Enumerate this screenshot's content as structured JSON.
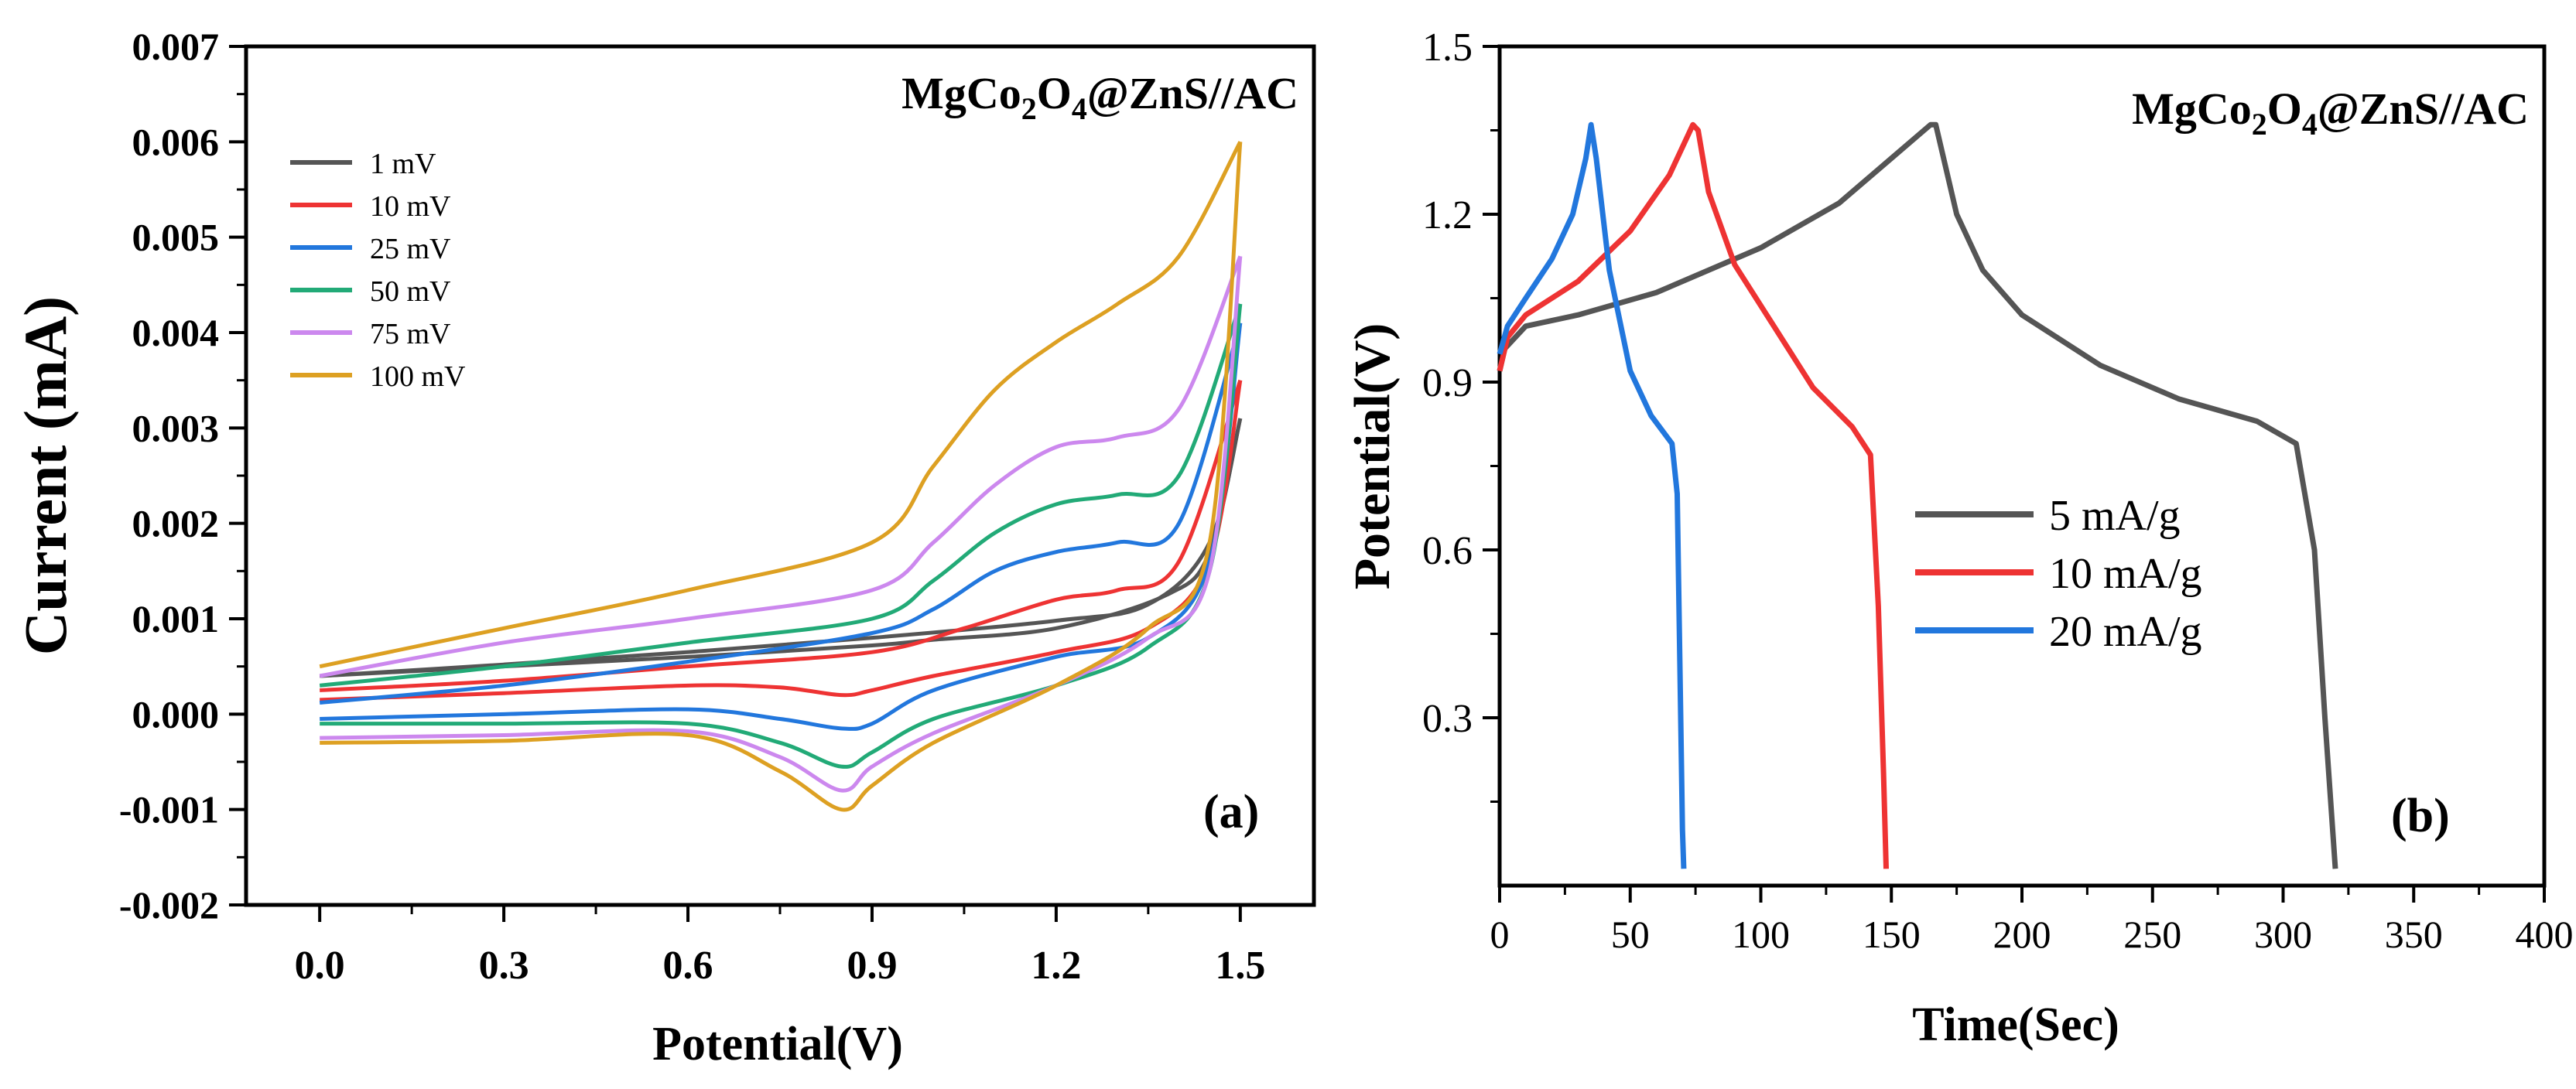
{
  "chart_data": [
    {
      "type": "line",
      "panel_label": "(a)",
      "annotation": {
        "main": "MgCo",
        "sub1": "2",
        "mid": "O",
        "sub2": "4",
        "tail": "@ZnS//AC"
      },
      "xlabel": "Potential(V)",
      "ylabel": "Current (mA)",
      "xlim": [
        -0.12,
        1.62
      ],
      "ylim": [
        -0.002,
        0.007
      ],
      "xticks": [
        0.0,
        0.3,
        0.6,
        0.9,
        1.2,
        1.5
      ],
      "xtick_labels": [
        "0.0",
        "0.3",
        "0.6",
        "0.9",
        "1.2",
        "1.5"
      ],
      "yticks": [
        -0.002,
        -0.001,
        0.0,
        0.001,
        0.002,
        0.003,
        0.004,
        0.005,
        0.006,
        0.007
      ],
      "ytick_labels": [
        "-0.002",
        "-0.001",
        "0.000",
        "0.001",
        "0.002",
        "0.003",
        "0.004",
        "0.005",
        "0.006",
        "0.007"
      ],
      "legend_position": "top-left",
      "series": [
        {
          "name": "1   mV",
          "color": "#555555",
          "forward": [
            [
              0.0,
              0.0004
            ],
            [
              0.3,
              0.00052
            ],
            [
              0.6,
              0.00065
            ],
            [
              0.9,
              0.0008
            ],
            [
              1.2,
              0.00098
            ],
            [
              1.35,
              0.00115
            ],
            [
              1.45,
              0.0018
            ],
            [
              1.5,
              0.0031
            ]
          ],
          "reverse": [
            [
              1.5,
              0.0031
            ],
            [
              1.45,
              0.0017
            ],
            [
              1.38,
              0.00125
            ],
            [
              1.2,
              0.0009
            ],
            [
              1.0,
              0.00078
            ],
            [
              0.9,
              0.00072
            ],
            [
              0.6,
              0.0006
            ],
            [
              0.3,
              0.0005
            ],
            [
              0.0,
              0.0004
            ]
          ]
        },
        {
          "name": "10  mV",
          "color": "#ee3333",
          "forward": [
            [
              0.0,
              0.00025
            ],
            [
              0.3,
              0.00035
            ],
            [
              0.6,
              0.0005
            ],
            [
              0.9,
              0.00065
            ],
            [
              1.05,
              0.0009
            ],
            [
              1.2,
              0.0012
            ],
            [
              1.3,
              0.0013
            ],
            [
              1.4,
              0.0016
            ],
            [
              1.5,
              0.0035
            ]
          ],
          "reverse": [
            [
              1.5,
              0.0035
            ],
            [
              1.45,
              0.0016
            ],
            [
              1.35,
              0.0009
            ],
            [
              1.2,
              0.00065
            ],
            [
              1.0,
              0.0004
            ],
            [
              0.9,
              0.00025
            ],
            [
              0.85,
              0.0002
            ],
            [
              0.75,
              0.00028
            ],
            [
              0.6,
              0.0003
            ],
            [
              0.3,
              0.00022
            ],
            [
              0.0,
              0.00015
            ]
          ]
        },
        {
          "name": "25  mV",
          "color": "#2277dd",
          "forward": [
            [
              0.0,
              0.00012
            ],
            [
              0.3,
              0.0003
            ],
            [
              0.6,
              0.00055
            ],
            [
              0.9,
              0.00085
            ],
            [
              1.0,
              0.0011
            ],
            [
              1.1,
              0.0015
            ],
            [
              1.2,
              0.0017
            ],
            [
              1.3,
              0.0018
            ],
            [
              1.4,
              0.002
            ],
            [
              1.5,
              0.0041
            ]
          ],
          "reverse": [
            [
              1.5,
              0.0041
            ],
            [
              1.45,
              0.0016
            ],
            [
              1.35,
              0.0008
            ],
            [
              1.2,
              0.0006
            ],
            [
              1.0,
              0.00025
            ],
            [
              0.9,
              -0.0001
            ],
            [
              0.85,
              -0.00015
            ],
            [
              0.75,
              -5e-05
            ],
            [
              0.6,
              5e-05
            ],
            [
              0.3,
              0.0
            ],
            [
              0.0,
              -5e-05
            ]
          ]
        },
        {
          "name": "50  mV",
          "color": "#22aa77",
          "forward": [
            [
              0.0,
              0.0003
            ],
            [
              0.3,
              0.0005
            ],
            [
              0.6,
              0.00075
            ],
            [
              0.9,
              0.001
            ],
            [
              1.0,
              0.0014
            ],
            [
              1.1,
              0.0019
            ],
            [
              1.2,
              0.0022
            ],
            [
              1.3,
              0.0023
            ],
            [
              1.4,
              0.0025
            ],
            [
              1.5,
              0.0043
            ]
          ],
          "reverse": [
            [
              1.5,
              0.0043
            ],
            [
              1.45,
              0.0015
            ],
            [
              1.35,
              0.0007
            ],
            [
              1.2,
              0.0003
            ],
            [
              1.0,
              -5e-05
            ],
            [
              0.9,
              -0.0004
            ],
            [
              0.85,
              -0.00055
            ],
            [
              0.75,
              -0.0003
            ],
            [
              0.6,
              -0.0001
            ],
            [
              0.3,
              -0.0001
            ],
            [
              0.0,
              -0.0001
            ]
          ]
        },
        {
          "name": "75  mV",
          "color": "#cc88ee",
          "forward": [
            [
              0.0,
              0.0004
            ],
            [
              0.3,
              0.00075
            ],
            [
              0.6,
              0.001
            ],
            [
              0.9,
              0.0013
            ],
            [
              1.0,
              0.0018
            ],
            [
              1.1,
              0.0024
            ],
            [
              1.2,
              0.0028
            ],
            [
              1.3,
              0.0029
            ],
            [
              1.4,
              0.0032
            ],
            [
              1.5,
              0.0048
            ]
          ],
          "reverse": [
            [
              1.5,
              0.0048
            ],
            [
              1.45,
              0.0015
            ],
            [
              1.35,
              0.0008
            ],
            [
              1.2,
              0.0003
            ],
            [
              1.0,
              -0.0002
            ],
            [
              0.9,
              -0.00055
            ],
            [
              0.85,
              -0.0008
            ],
            [
              0.75,
              -0.00045
            ],
            [
              0.6,
              -0.00018
            ],
            [
              0.3,
              -0.00022
            ],
            [
              0.0,
              -0.00025
            ]
          ]
        },
        {
          "name": "100 mV",
          "color": "#dda022",
          "forward": [
            [
              0.0,
              0.0005
            ],
            [
              0.3,
              0.0009
            ],
            [
              0.6,
              0.0013
            ],
            [
              0.9,
              0.0018
            ],
            [
              1.0,
              0.0026
            ],
            [
              1.1,
              0.0034
            ],
            [
              1.2,
              0.0039
            ],
            [
              1.3,
              0.0043
            ],
            [
              1.4,
              0.0048
            ],
            [
              1.5,
              0.006
            ]
          ],
          "reverse": [
            [
              1.5,
              0.006
            ],
            [
              1.45,
              0.0018
            ],
            [
              1.35,
              0.0009
            ],
            [
              1.2,
              0.0003
            ],
            [
              1.0,
              -0.0003
            ],
            [
              0.9,
              -0.00075
            ],
            [
              0.85,
              -0.001
            ],
            [
              0.75,
              -0.0006
            ],
            [
              0.6,
              -0.00022
            ],
            [
              0.3,
              -0.00028
            ],
            [
              0.0,
              -0.0003
            ]
          ]
        }
      ]
    },
    {
      "type": "line",
      "panel_label": "(b)",
      "annotation": {
        "main": "MgCo",
        "sub1": "2",
        "mid": "O",
        "sub2": "4",
        "tail": "@ZnS//AC"
      },
      "xlabel": "Time(Sec)",
      "ylabel": "Potential(V)",
      "xlim": [
        0,
        400
      ],
      "ylim": [
        0,
        1.5
      ],
      "xticks": [
        0,
        50,
        100,
        150,
        200,
        250,
        300,
        350,
        400
      ],
      "xtick_labels": [
        "0",
        "50",
        "100",
        "150",
        "200",
        "250",
        "300",
        "350",
        "400"
      ],
      "yticks": [
        0.3,
        0.6,
        0.9,
        1.2,
        1.5
      ],
      "ytick_labels": [
        "0.3",
        "0.6",
        "0.9",
        "1.2",
        "1.5"
      ],
      "legend_position": "center-right",
      "series": [
        {
          "name": "5  mA/g",
          "color": "#555555",
          "points": [
            [
              0,
              0.92
            ],
            [
              2,
              0.96
            ],
            [
              10,
              1.0
            ],
            [
              30,
              1.02
            ],
            [
              60,
              1.06
            ],
            [
              100,
              1.14
            ],
            [
              130,
              1.22
            ],
            [
              150,
              1.3
            ],
            [
              165,
              1.36
            ],
            [
              167,
              1.36
            ],
            [
              175,
              1.2
            ],
            [
              185,
              1.1
            ],
            [
              200,
              1.02
            ],
            [
              230,
              0.93
            ],
            [
              260,
              0.87
            ],
            [
              290,
              0.83
            ],
            [
              305,
              0.79
            ],
            [
              312,
              0.6
            ],
            [
              316,
              0.3
            ],
            [
              320,
              0.03
            ]
          ]
        },
        {
          "name": "10 mA/g",
          "color": "#ee3333",
          "points": [
            [
              0,
              0.92
            ],
            [
              3,
              0.98
            ],
            [
              10,
              1.02
            ],
            [
              30,
              1.08
            ],
            [
              50,
              1.17
            ],
            [
              65,
              1.27
            ],
            [
              74,
              1.36
            ],
            [
              76,
              1.35
            ],
            [
              80,
              1.24
            ],
            [
              90,
              1.11
            ],
            [
              105,
              1.0
            ],
            [
              120,
              0.89
            ],
            [
              135,
              0.82
            ],
            [
              142,
              0.77
            ],
            [
              145,
              0.5
            ],
            [
              147,
              0.2
            ],
            [
              148,
              0.03
            ]
          ]
        },
        {
          "name": "20 mA/g",
          "color": "#2277dd",
          "points": [
            [
              0,
              0.95
            ],
            [
              3,
              1.0
            ],
            [
              10,
              1.05
            ],
            [
              20,
              1.12
            ],
            [
              28,
              1.2
            ],
            [
              33,
              1.3
            ],
            [
              35,
              1.36
            ],
            [
              37,
              1.3
            ],
            [
              42,
              1.1
            ],
            [
              50,
              0.92
            ],
            [
              58,
              0.84
            ],
            [
              66,
              0.79
            ],
            [
              68,
              0.7
            ],
            [
              69,
              0.4
            ],
            [
              70,
              0.1
            ],
            [
              70.5,
              0.03
            ]
          ]
        }
      ]
    }
  ]
}
